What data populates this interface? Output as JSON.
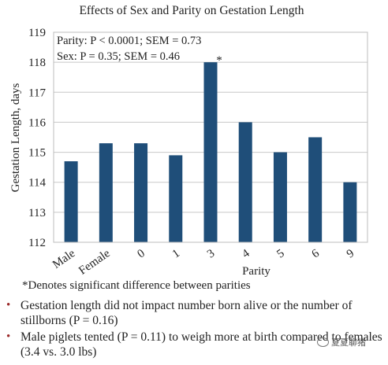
{
  "chart_data": {
    "type": "bar",
    "title": "Effects of Sex and Parity on Gestation Length",
    "xlabel": "Parity",
    "ylabel": "Gestation Length, days",
    "categories": [
      "Male",
      "Female",
      "0",
      "1",
      "3",
      "4",
      "5",
      "6",
      "9"
    ],
    "values": [
      114.7,
      115.3,
      115.3,
      114.9,
      118.0,
      116.0,
      115.0,
      115.5,
      114.0
    ],
    "ylim": [
      112,
      119
    ],
    "yticks": [
      "112",
      "113",
      "114",
      "115",
      "116",
      "117",
      "118",
      "119"
    ],
    "grid": true,
    "bar_color": "#1f4e79",
    "annotations": [
      "Parity: P < 0.0001; SEM = 0.73",
      "Sex: P = 0.35; SEM = 0.46"
    ],
    "significance_marker": "*"
  },
  "footnote": "*Denotes significant difference between parities",
  "bullets": [
    "Gestation length did not impact number born alive or the number of stillborns (P = 0.16)",
    "Male piglets tented (P = 0.11) to weigh more at birth compared to females (3.4 vs. 3.0 lbs)"
  ],
  "watermark": "夏夏聊猪"
}
